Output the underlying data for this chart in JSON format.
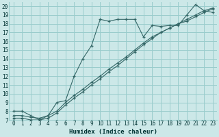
{
  "xlabel": "Humidex (Indice chaleur)",
  "background_color": "#cce8e8",
  "grid_color": "#99cccc",
  "line_color": "#336666",
  "xlim": [
    -0.5,
    23.5
  ],
  "ylim": [
    7,
    20.5
  ],
  "xtick_labels": [
    "0",
    "1",
    "2",
    "3",
    "4",
    "5",
    "6",
    "7",
    "8",
    "9",
    "10",
    "11",
    "12",
    "13",
    "14",
    "15",
    "16",
    "17",
    "18",
    "19",
    "20",
    "21",
    "22",
    "23"
  ],
  "ytick_labels": [
    "7",
    "8",
    "9",
    "10",
    "11",
    "12",
    "13",
    "14",
    "15",
    "16",
    "17",
    "18",
    "19",
    "20"
  ],
  "xticks": [
    0,
    1,
    2,
    3,
    4,
    5,
    6,
    7,
    8,
    9,
    10,
    11,
    12,
    13,
    14,
    15,
    16,
    17,
    18,
    19,
    20,
    21,
    22,
    23
  ],
  "yticks": [
    7,
    8,
    9,
    10,
    11,
    12,
    13,
    14,
    15,
    16,
    17,
    18,
    19,
    20
  ],
  "series1_x": [
    0,
    1,
    2,
    3,
    4,
    5,
    6,
    7,
    8,
    9,
    10,
    11,
    12,
    13,
    14,
    15,
    16,
    17,
    18,
    19,
    20,
    21,
    22,
    23
  ],
  "series1_y": [
    8.0,
    8.0,
    7.5,
    7.0,
    7.5,
    9.0,
    9.2,
    12.0,
    14.0,
    15.5,
    18.5,
    18.3,
    18.5,
    18.5,
    18.5,
    16.5,
    17.8,
    17.7,
    17.8,
    17.8,
    19.0,
    20.2,
    19.5,
    19.3
  ],
  "series2_x": [
    0,
    1,
    2,
    3,
    4,
    5,
    6,
    7,
    8,
    9,
    10,
    11,
    12,
    13,
    14,
    15,
    16,
    17,
    18,
    19,
    20,
    21,
    22,
    23
  ],
  "series2_y": [
    7.5,
    7.5,
    7.3,
    7.2,
    7.5,
    8.0,
    9.0,
    9.8,
    10.5,
    11.3,
    12.0,
    12.8,
    13.5,
    14.2,
    15.0,
    15.8,
    16.5,
    17.0,
    17.5,
    18.0,
    18.5,
    19.0,
    19.5,
    19.8
  ],
  "series3_x": [
    0,
    1,
    2,
    3,
    4,
    5,
    6,
    7,
    8,
    9,
    10,
    11,
    12,
    13,
    14,
    15,
    16,
    17,
    18,
    19,
    20,
    21,
    22,
    23
  ],
  "series3_y": [
    7.2,
    7.2,
    7.0,
    7.0,
    7.2,
    7.8,
    8.7,
    9.5,
    10.2,
    11.0,
    11.7,
    12.5,
    13.2,
    14.0,
    14.8,
    15.6,
    16.3,
    17.0,
    17.5,
    18.0,
    18.3,
    18.8,
    19.3,
    19.7
  ]
}
